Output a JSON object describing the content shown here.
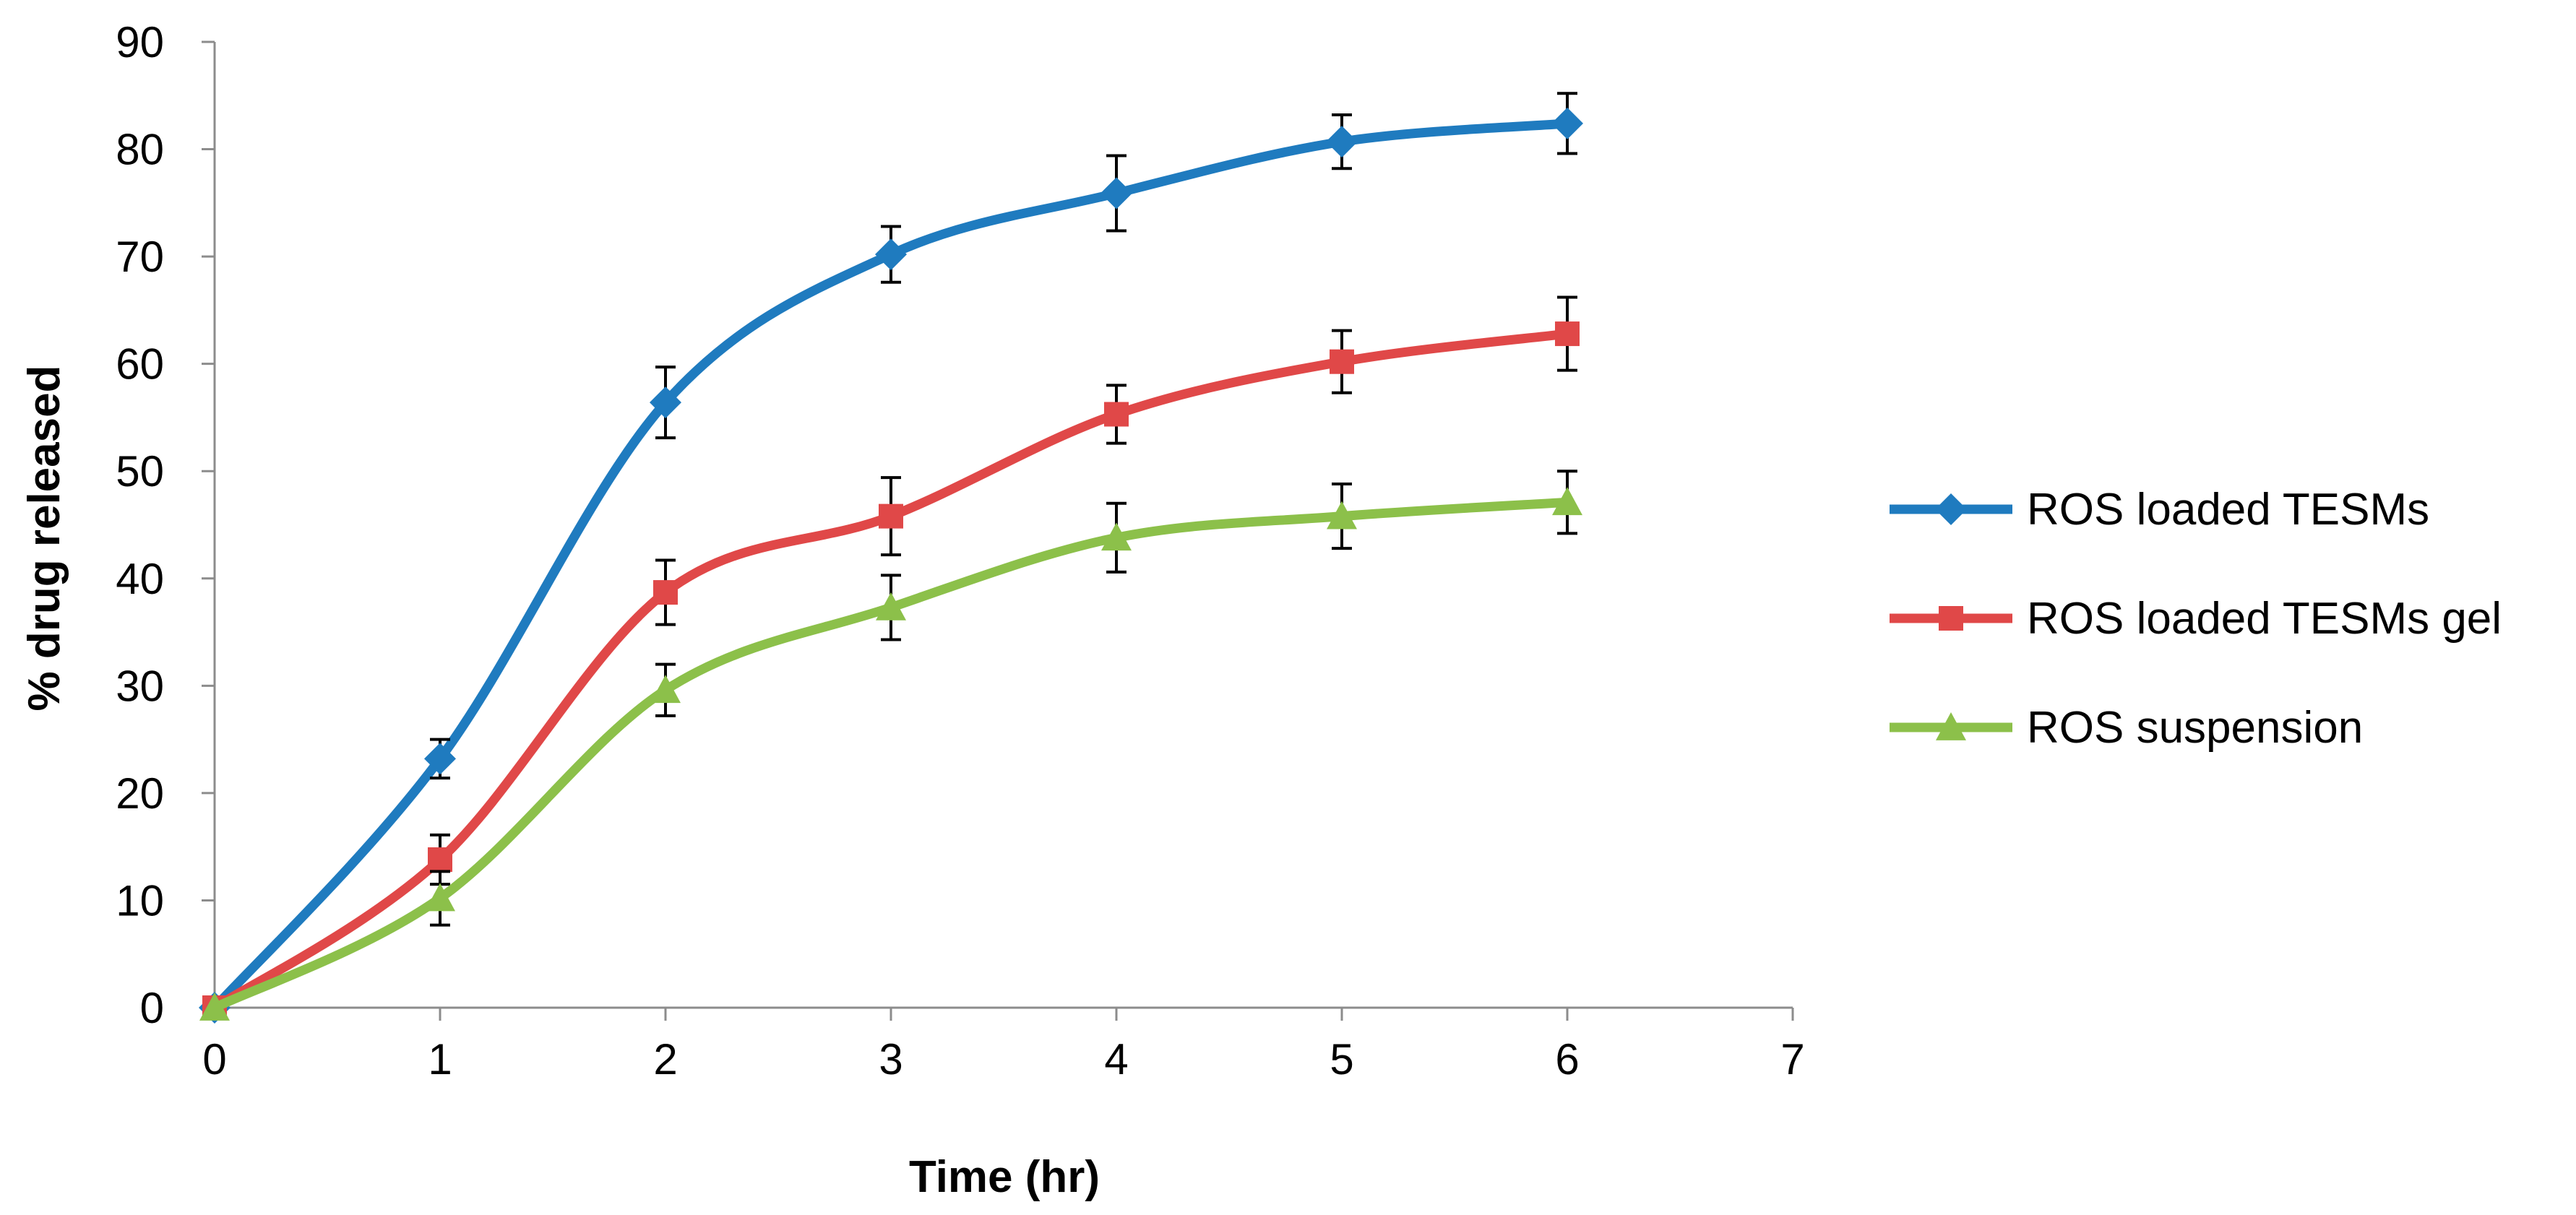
{
  "chart_data": {
    "type": "line",
    "title": "",
    "xlabel": "Time (hr)",
    "ylabel": "% drug released",
    "xlim": [
      0,
      7
    ],
    "ylim": [
      0,
      90
    ],
    "x_ticks": [
      0,
      1,
      2,
      3,
      4,
      5,
      6,
      7
    ],
    "y_ticks": [
      0,
      10,
      20,
      30,
      40,
      50,
      60,
      70,
      80,
      90
    ],
    "grid": false,
    "legend_position": "right",
    "x": [
      0,
      1,
      2,
      3,
      4,
      5,
      6
    ],
    "series": [
      {
        "name": "ROS loaded TESMs",
        "color": "#1f7bbf",
        "marker": "diamond",
        "values": [
          0,
          23.2,
          56.4,
          70.2,
          75.9,
          80.7,
          82.4
        ],
        "errors": [
          0,
          1.8,
          3.3,
          2.6,
          3.5,
          2.5,
          2.8
        ]
      },
      {
        "name": "ROS loaded TESMs gel",
        "color": "#e04848",
        "marker": "square",
        "values": [
          0,
          13.8,
          38.7,
          45.8,
          55.3,
          60.2,
          62.8
        ],
        "errors": [
          0,
          2.3,
          3.0,
          3.6,
          2.7,
          2.9,
          3.4
        ]
      },
      {
        "name": "ROS suspension",
        "color": "#8cc04a",
        "marker": "triangle",
        "values": [
          0,
          10.2,
          29.6,
          37.3,
          43.8,
          45.8,
          47.1
        ],
        "errors": [
          0,
          2.5,
          2.4,
          3.0,
          3.2,
          3.0,
          2.9
        ]
      }
    ]
  }
}
